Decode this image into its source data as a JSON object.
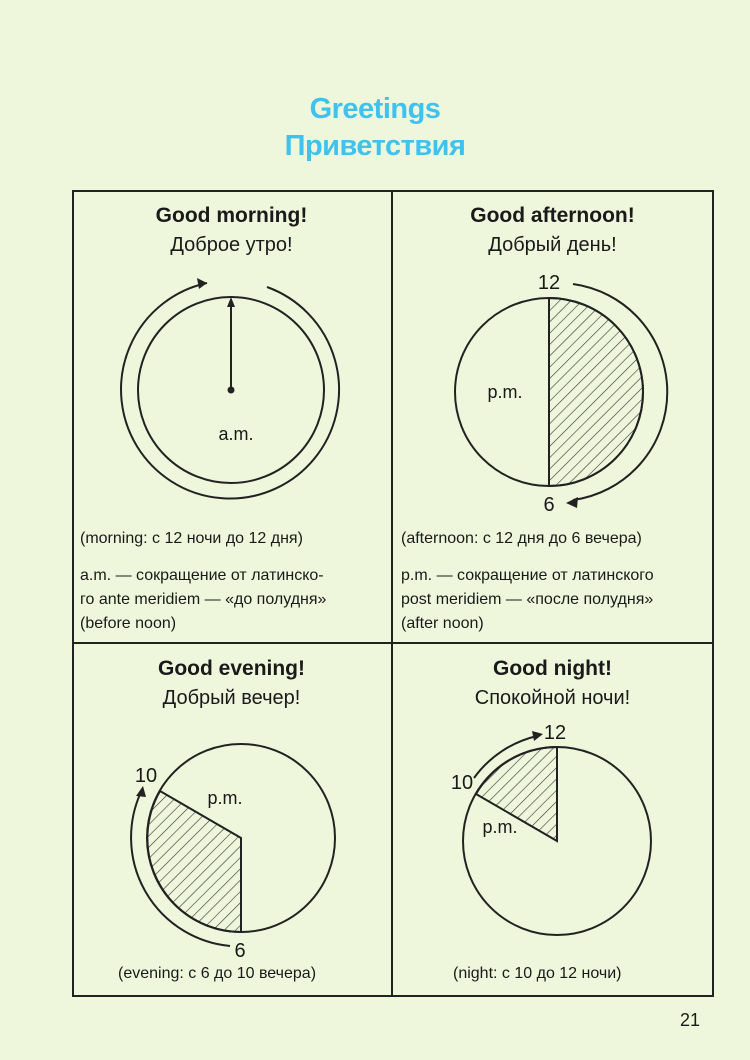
{
  "header": {
    "title_en": "Greetings",
    "title_ru": "Приветствия",
    "accent_color": "#3fc3ee"
  },
  "cards": {
    "morning": {
      "greeting_en": "Good morning!",
      "greeting_ru": "Доброе утро!",
      "clock_label": "a.m.",
      "note": "(morning: с 12 ночи до 12 дня)",
      "explanation_1": "a.m. — сокращение от латинско-",
      "explanation_2": "го ante meridiem — «до полудня»",
      "explanation_3": "(before noon)"
    },
    "afternoon": {
      "greeting_en": "Good afternoon!",
      "greeting_ru": "Добрый день!",
      "clock_label": "p.m.",
      "start_hour": "12",
      "end_hour": "6",
      "note": "(afternoon: с 12 дня до 6 вечера)",
      "explanation_1": "p.m. — сокращение от латинского",
      "explanation_2": "post meridiem — «после полудня»",
      "explanation_3": "(after noon)"
    },
    "evening": {
      "greeting_en": "Good evening!",
      "greeting_ru": "Добрый вечер!",
      "clock_label": "p.m.",
      "start_hour": "6",
      "end_hour": "10",
      "note": "(evening: с 6 до 10 вечера)"
    },
    "night": {
      "greeting_en": "Good night!",
      "greeting_ru": "Спокойной ночи!",
      "clock_label": "p.m.",
      "start_hour": "10",
      "end_hour": "12",
      "note": "(night: с 10 до 12 ночи)"
    }
  },
  "page_number": "21"
}
